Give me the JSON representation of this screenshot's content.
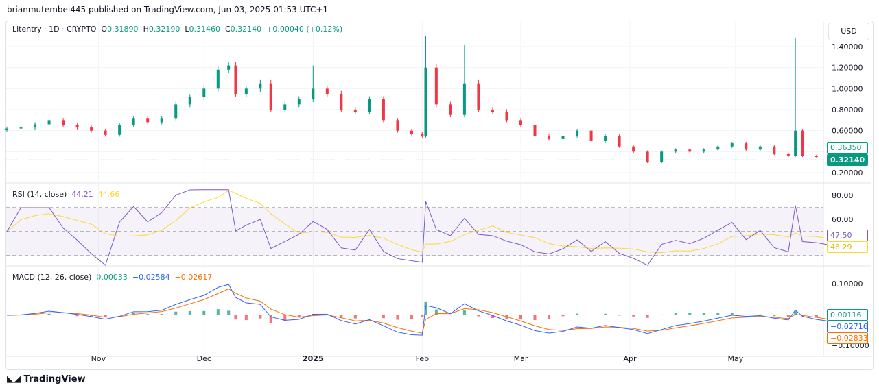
{
  "published": "brianmutembei445 published on TradingView.com, Jun 03, 2025 01:53 UTC+1",
  "legend": {
    "symbol": "Litentry · 1D · CRYPTO",
    "o_label": "O",
    "o": "0.31890",
    "h_label": "H",
    "h": "0.32190",
    "l_label": "L",
    "l": "0.31460",
    "c_label": "C",
    "c": "0.32140",
    "change": "+0.00040 (+0.12%)"
  },
  "currency": "USD",
  "price_tags": {
    "high": "0.36350",
    "last": "0.32140"
  },
  "rsi": {
    "label": "RSI (14, close)",
    "value": "44.21",
    "ma": "44.66",
    "tag_value": "47.50",
    "tag_ma": "46.29",
    "ticks": [
      "80.00",
      "60.00"
    ]
  },
  "macd": {
    "label": "MACD (12, 26, close)",
    "hist": "0.00033",
    "macd": "−0.02584",
    "signal": "−0.02617",
    "tag_hist": "0.00116",
    "tag_macd": "−0.02716",
    "tag_signal": "−0.02833",
    "ticks": [
      "0.10000",
      "−0.10000"
    ]
  },
  "brand": "TradingView",
  "colors": {
    "up": "#089981",
    "down": "#f23645",
    "rsi": "#7e57c2",
    "rsi_ma": "#fdd835",
    "macd": "#2962ff",
    "signal": "#ff6d00"
  },
  "chart_data": {
    "type": "candlestick",
    "ylim": [
      0.15,
      1.55
    ],
    "price_ticks": [
      "1.40000",
      "1.20000",
      "1.00000",
      "0.80000",
      "0.60000",
      "0.20000"
    ],
    "x_ticks": [
      "Nov",
      "Dec",
      "2025",
      "Feb",
      "Mar",
      "Apr",
      "May"
    ],
    "dates": [
      "2024-10-06",
      "2024-10-10",
      "2024-10-14",
      "2024-10-18",
      "2024-10-22",
      "2024-10-26",
      "2024-10-30",
      "2024-11-03",
      "2024-11-07",
      "2024-11-11",
      "2024-11-15",
      "2024-11-19",
      "2024-11-23",
      "2024-11-27",
      "2024-12-01",
      "2024-12-05",
      "2024-12-08",
      "2024-12-10",
      "2024-12-13",
      "2024-12-17",
      "2024-12-20",
      "2024-12-24",
      "2024-12-28",
      "2025-01-01",
      "2025-01-05",
      "2025-01-09",
      "2025-01-13",
      "2025-01-17",
      "2025-01-21",
      "2025-01-25",
      "2025-01-29",
      "2025-02-01",
      "2025-02-02",
      "2025-02-05",
      "2025-02-09",
      "2025-02-13",
      "2025-02-17",
      "2025-02-21",
      "2025-02-25",
      "2025-03-01",
      "2025-03-05",
      "2025-03-09",
      "2025-03-13",
      "2025-03-17",
      "2025-03-21",
      "2025-03-25",
      "2025-03-29",
      "2025-04-02",
      "2025-04-06",
      "2025-04-10",
      "2025-04-14",
      "2025-04-18",
      "2025-04-22",
      "2025-04-26",
      "2025-04-30",
      "2025-05-04",
      "2025-05-08",
      "2025-05-12",
      "2025-05-16",
      "2025-05-18",
      "2025-05-20",
      "2025-05-24",
      "2025-05-28",
      "2025-06-01",
      "2025-06-03"
    ],
    "close": [
      0.62,
      0.63,
      0.66,
      0.7,
      0.65,
      0.63,
      0.6,
      0.56,
      0.65,
      0.72,
      0.68,
      0.72,
      0.85,
      0.92,
      1.0,
      1.18,
      1.22,
      0.95,
      1.0,
      1.05,
      0.8,
      0.85,
      0.9,
      1.0,
      0.95,
      0.8,
      0.78,
      0.9,
      0.7,
      0.6,
      0.57,
      0.55,
      1.2,
      0.85,
      0.75,
      1.05,
      0.8,
      0.78,
      0.7,
      0.65,
      0.55,
      0.52,
      0.55,
      0.6,
      0.5,
      0.55,
      0.45,
      0.4,
      0.3,
      0.4,
      0.42,
      0.4,
      0.42,
      0.45,
      0.48,
      0.42,
      0.45,
      0.38,
      0.36,
      0.6,
      0.36,
      0.35,
      0.33,
      0.32,
      0.3214
    ],
    "spike_highs": {
      "2025-01-01": 1.22,
      "2025-02-02": 1.5,
      "2025-02-13": 1.42,
      "2025-05-18": 1.48
    }
  }
}
